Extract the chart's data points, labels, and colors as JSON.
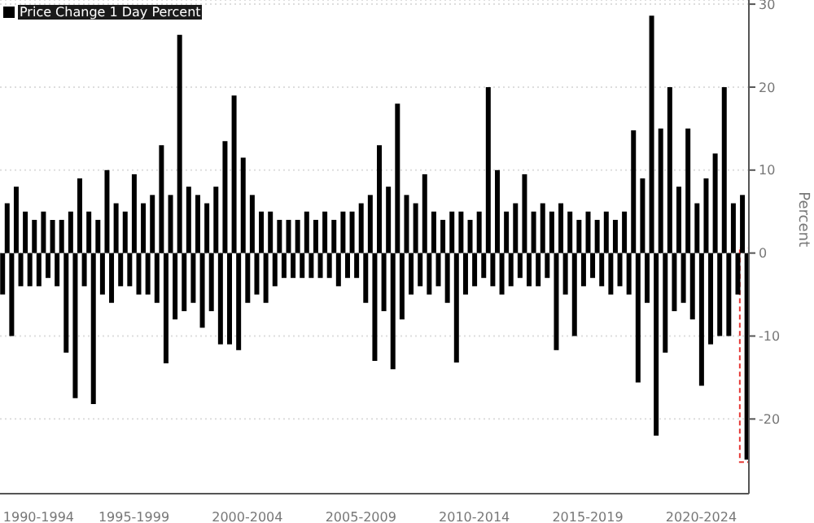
{
  "chart_data": {
    "type": "bar",
    "ylabel": "Percent",
    "categories": [
      null,
      null,
      null,
      null,
      null,
      null,
      null,
      null,
      "1990-1994",
      null,
      null,
      null,
      null,
      null,
      null,
      null,
      null,
      null,
      null,
      null,
      null,
      null,
      null,
      null,
      null,
      null,
      null,
      null,
      null,
      "1995-1999",
      null,
      null,
      null,
      null,
      null,
      null,
      null,
      null,
      null,
      null,
      null,
      null,
      null,
      null,
      null,
      null,
      null,
      null,
      null,
      null,
      null,
      null,
      null,
      null,
      "2000-2004",
      null,
      null,
      null,
      null,
      null,
      null,
      null,
      null,
      null,
      null,
      null,
      null,
      null,
      null,
      null,
      null,
      null,
      null,
      null,
      null,
      null,
      null,
      null,
      null,
      "2005-2009",
      null,
      null,
      null,
      null,
      null,
      null,
      null,
      null,
      null,
      null,
      null,
      null,
      null,
      null,
      null,
      null,
      null,
      null,
      null,
      null,
      null,
      null,
      null,
      null,
      "2010-2014",
      null,
      null,
      null,
      null,
      null,
      null,
      null,
      null,
      null,
      null,
      null,
      null,
      null,
      null,
      null,
      null,
      null,
      null,
      null,
      null,
      null,
      null,
      null,
      null,
      "2015-2019",
      null,
      null,
      null,
      null,
      null,
      null,
      null,
      null,
      null,
      null,
      null,
      null,
      null,
      null,
      null,
      null,
      null,
      null,
      null,
      null,
      null,
      null,
      null,
      null,
      "2020-2024",
      null,
      null,
      null,
      null,
      null,
      null,
      null,
      null,
      null,
      null
    ],
    "series": [
      {
        "name": "Price Change 1 Day Percent",
        "color": "#000000",
        "values": [
          -5,
          6,
          -10,
          8,
          -4,
          5,
          -4,
          4,
          -4,
          5,
          -3,
          4,
          -4,
          4,
          -12,
          5,
          -17.5,
          9,
          -4,
          5,
          -18.2,
          4,
          -5,
          10,
          -6,
          6,
          -4,
          5,
          -4,
          9.5,
          -5,
          6,
          -5,
          7,
          -6,
          13,
          -13.3,
          7,
          -8,
          26.3,
          -7,
          8,
          -6,
          7,
          -9,
          6,
          -7,
          8,
          -11,
          13.5,
          -11,
          19,
          -11.7,
          11.5,
          -6,
          7,
          -5,
          5,
          -6,
          5,
          -4,
          4,
          -3,
          4,
          -3,
          4,
          -3,
          5,
          -3,
          4,
          -3,
          5,
          -3,
          4,
          -4,
          5,
          -3,
          5,
          -3,
          6,
          -6,
          7,
          -13,
          13,
          -7,
          8,
          -14,
          18,
          -8,
          7,
          -5,
          6,
          -4,
          9.5,
          -5,
          5,
          -4,
          4,
          -6,
          5,
          -13.2,
          5,
          -5,
          4,
          -4,
          5,
          -3,
          20,
          -4,
          10,
          -5,
          5,
          -4,
          6,
          -3,
          9.5,
          -4,
          5,
          -4,
          6,
          -3,
          5,
          -11.7,
          6,
          -5,
          5,
          -10,
          4,
          -4,
          5,
          -3,
          4,
          -4,
          5,
          -5,
          4,
          -4,
          5,
          -5,
          14.8,
          -15.6,
          9,
          -6,
          28.6,
          -22,
          15,
          -12,
          20,
          -7,
          8,
          -6,
          15,
          -8,
          6,
          -16,
          9,
          -11,
          12,
          -10,
          20,
          -10,
          6,
          -5,
          7,
          -24.9
        ]
      }
    ],
    "ylim": [
      -29,
      30.5
    ],
    "yticks": [
      -20,
      -10,
      0,
      10,
      20,
      30
    ],
    "grid": "y",
    "legend": "top left"
  }
}
